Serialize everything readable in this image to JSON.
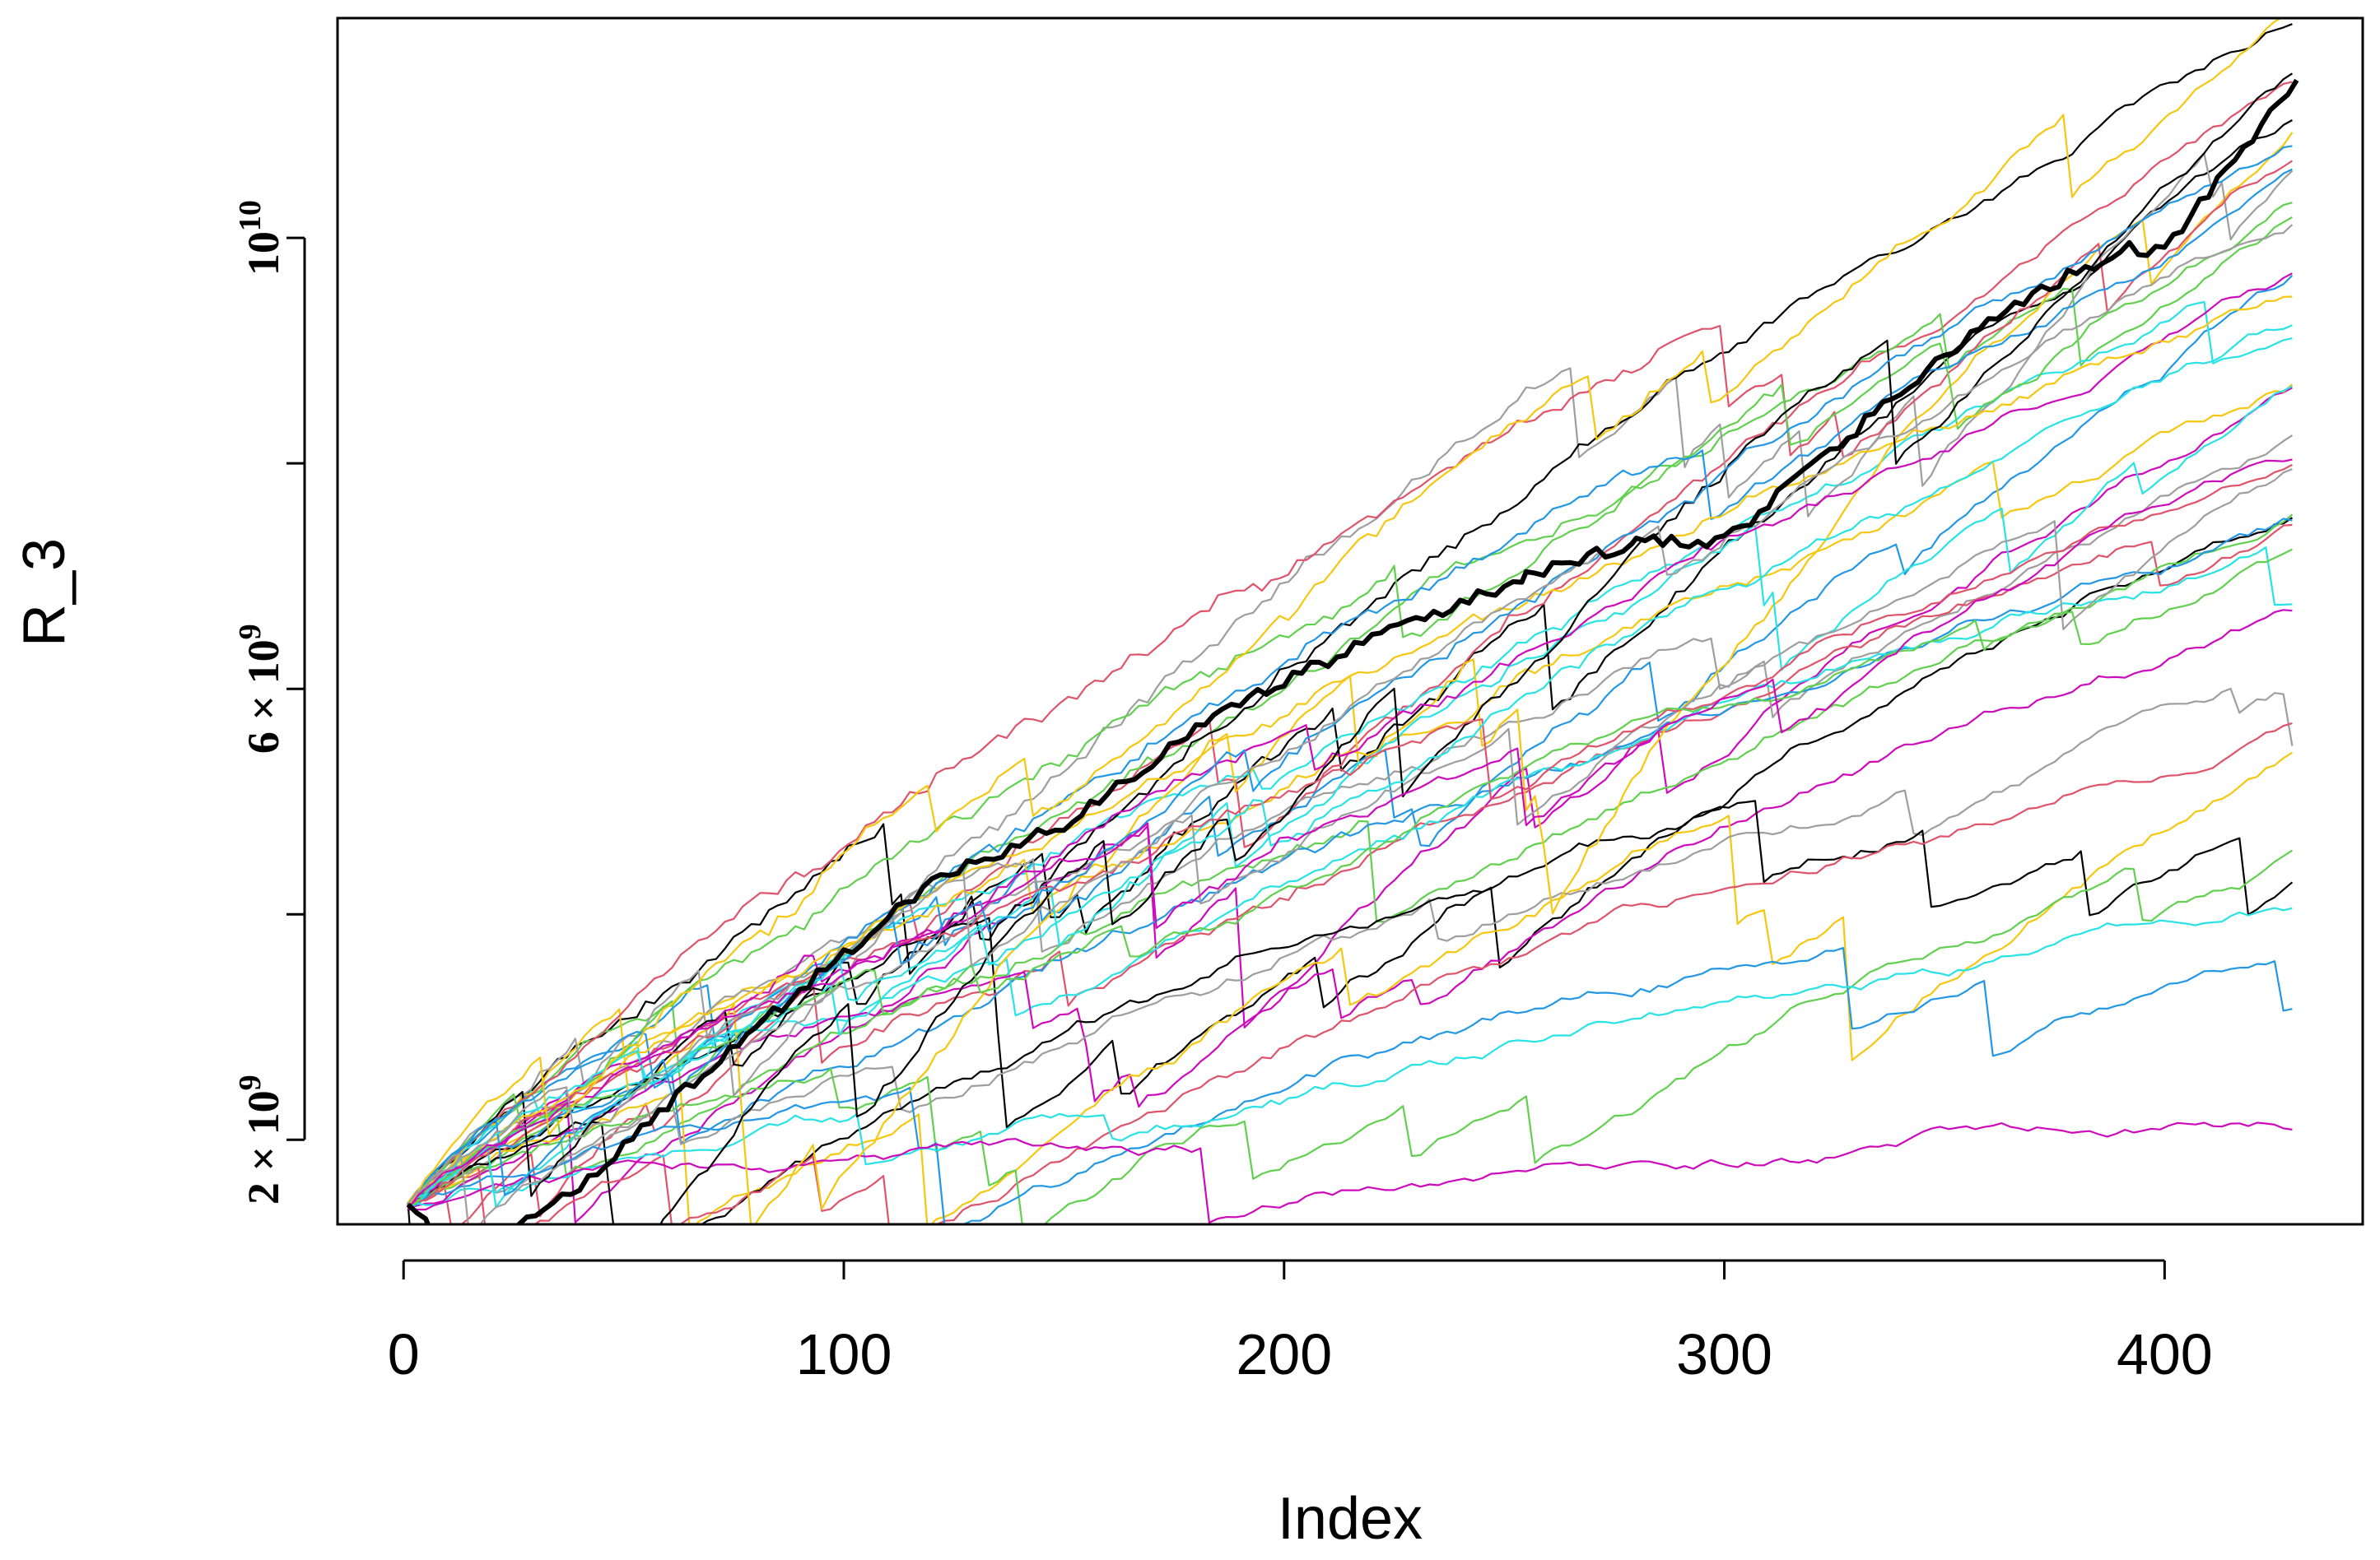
{
  "chart_data": {
    "type": "line",
    "xlabel": "Index",
    "ylabel": "R_3",
    "xlim": [
      -15,
      445
    ],
    "ylim": [
      1250000000,
      11950000000
    ],
    "x_ticks": [
      {
        "value": 0,
        "label": "0"
      },
      {
        "value": 100,
        "label": "100"
      },
      {
        "value": 200,
        "label": "200"
      },
      {
        "value": 300,
        "label": "300"
      },
      {
        "value": 400,
        "label": "400"
      }
    ],
    "y_ticks": [
      {
        "value": 2000000000,
        "label_base": "2 × 10",
        "label_exp": "9"
      },
      {
        "value": 4000000000,
        "label_base": "",
        "label_exp": ""
      },
      {
        "value": 6000000000,
        "label_base": "6 × 10",
        "label_exp": "9"
      },
      {
        "value": 8000000000,
        "label_base": "",
        "label_exp": ""
      },
      {
        "value": 10000000000,
        "label_base": "10",
        "label_exp": "10"
      }
    ],
    "x_start": 1,
    "x_end": 430,
    "start_value": 1400000000,
    "palette": [
      "#000000",
      "#DF536B",
      "#61D04F",
      "#2297E6",
      "#28E2E5",
      "#CD0BBC",
      "#F5C710",
      "#9E9E9E"
    ],
    "highlight_series": {
      "color": "#000000",
      "points": [
        [
          1,
          1400000000
        ],
        [
          10,
          1050000000
        ],
        [
          22,
          1100000000
        ],
        [
          40,
          1600000000
        ],
        [
          80,
          3000000000
        ],
        [
          120,
          4300000000
        ],
        [
          150,
          4800000000
        ],
        [
          190,
          5900000000
        ],
        [
          230,
          6600000000
        ],
        [
          255,
          7000000000
        ],
        [
          280,
          7300000000
        ],
        [
          300,
          7300000000
        ],
        [
          330,
          8300000000
        ],
        [
          360,
          9300000000
        ],
        [
          390,
          9900000000
        ],
        [
          400,
          9900000000
        ],
        [
          430,
          11400000000
        ]
      ]
    },
    "series_end_values": [
      11400000000,
      11200000000,
      10600000000,
      10100000000,
      9600000000,
      9200000000,
      8600000000,
      8200000000,
      7900000000,
      7600000000,
      7300000000,
      7100000000,
      6900000000,
      6700000000,
      6400000000,
      6100000000,
      5900000000,
      5500000000,
      4900000000,
      4300000000,
      3700000000,
      1900000000,
      12500000000,
      13000000000,
      11800000000,
      11600000000,
      11000000000,
      10400000000,
      9900000000,
      9400000000,
      8900000000,
      8400000000,
      12200000000,
      7800000000,
      7400000000,
      10800000000,
      9000000000,
      8100000000,
      12800000000,
      10200000000
    ]
  }
}
